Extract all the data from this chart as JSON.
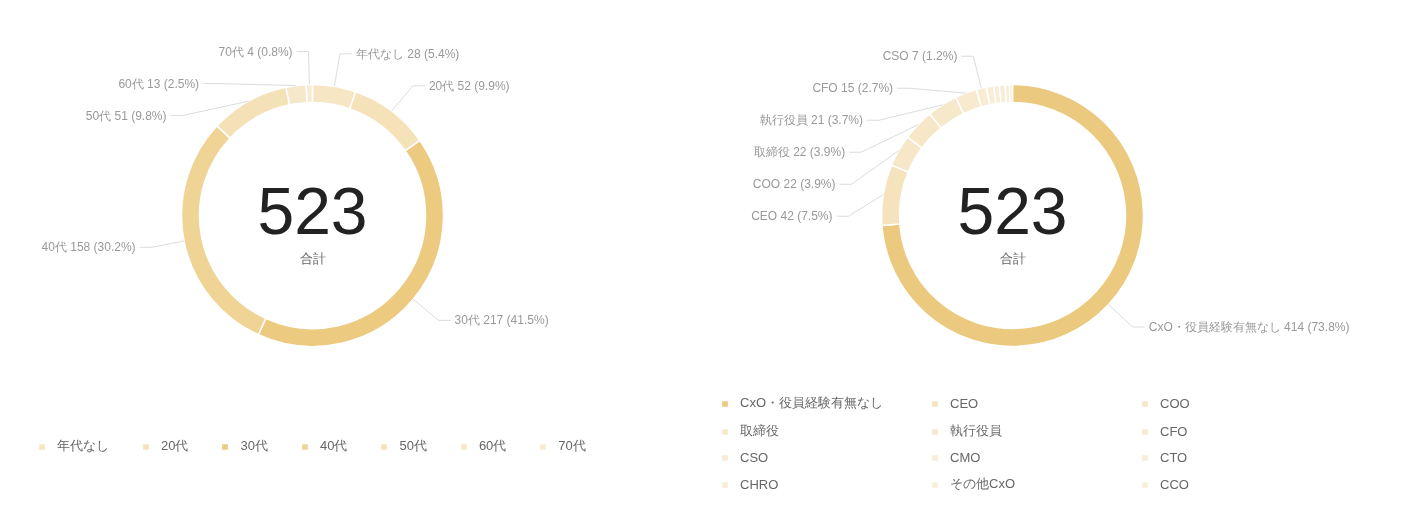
{
  "chart_data": [
    {
      "type": "donut",
      "categories": [
        "年代なし",
        "20代",
        "30代",
        "40代",
        "50代",
        "60代",
        "70代"
      ],
      "values": [
        28,
        52,
        217,
        158,
        51,
        13,
        4
      ],
      "colors": [
        "#f6e6c4",
        "#f5e2b9",
        "#ecca80",
        "#efd495",
        "#f4e1b8",
        "#f6e8cb",
        "#f7ebd2"
      ],
      "value_labels": [
        "28 (5.4%)",
        "52 (9.9%)",
        "217 (41.5%)",
        "158 (30.2%)",
        "51 (9.8%)",
        "13 (2.5%)",
        "4 (0.8%)"
      ],
      "annotations": [
        "523",
        "合計"
      ],
      "legend": "bottom"
    },
    {
      "type": "donut",
      "categories": [
        "CxO・役員経験有無なし",
        "CEO",
        "COO",
        "取締役",
        "執行役員",
        "CFO",
        "CSO",
        "CMO",
        "CTO",
        "CHRO",
        "その他CxO",
        "CCO"
      ],
      "values": [
        414,
        42,
        22,
        22,
        21,
        15,
        7,
        5,
        4,
        4,
        3,
        2
      ],
      "colors": [
        "#ebc97e",
        "#f5e3bd",
        "#f6e7c8",
        "#f6e7c8",
        "#f6e8ca",
        "#f7eacf",
        "#f8ecd4",
        "#f8edd6",
        "#f8edd6",
        "#f8edd6",
        "#f8eed8",
        "#f8eed8"
      ],
      "value_labels": [
        "414 (73.8%)",
        "42 (7.5%)",
        "22 (3.9%)",
        "22 (3.9%)",
        "21 (3.7%)",
        "15 (2.7%)",
        "7 (1.2%)",
        null,
        null,
        null,
        null,
        null
      ],
      "annotations": [
        "523",
        "合計"
      ],
      "legend": "bottom"
    }
  ]
}
